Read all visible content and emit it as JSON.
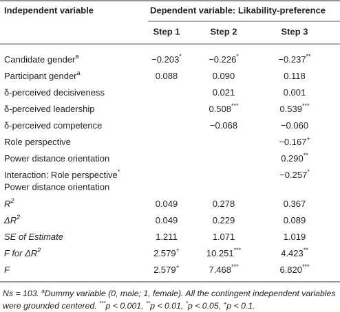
{
  "header": {
    "col0": "Independent variable",
    "group": "Dependent variable: Likability-preference",
    "steps": [
      "Step 1",
      "Step 2",
      "Step 3"
    ]
  },
  "rows": [
    {
      "label": "Candidate gender",
      "label_sup": "a",
      "cells": [
        {
          "text": "−0.203",
          "sup": "*"
        },
        {
          "text": "−0.226",
          "sup": "*"
        },
        {
          "text": "−0.237",
          "sup": "**"
        }
      ]
    },
    {
      "label": "Participant gender",
      "label_sup": "a",
      "cells": [
        {
          "text": "0.088"
        },
        {
          "text": "0.090"
        },
        {
          "text": "0.118"
        }
      ]
    },
    {
      "label": "δ-perceived decisiveness",
      "cells": [
        null,
        {
          "text": "0.021"
        },
        {
          "text": "0.001"
        }
      ]
    },
    {
      "label": "δ-perceived leadership",
      "cells": [
        null,
        {
          "text": "0.508",
          "sup": "***"
        },
        {
          "text": "0.539",
          "sup": "***"
        }
      ]
    },
    {
      "label": "δ-perceived competence",
      "cells": [
        null,
        {
          "text": "−0.068"
        },
        {
          "text": "−0.060"
        }
      ]
    },
    {
      "label": "Role perspective",
      "cells": [
        null,
        null,
        {
          "text": "−0.167",
          "sup": "+"
        }
      ]
    },
    {
      "label": "Power distance orientation",
      "cells": [
        null,
        null,
        {
          "text": "0.290",
          "sup": "**"
        }
      ]
    },
    {
      "label": "Interaction: Role perspective",
      "label_sup": "*",
      "label2": "Power distance orientation",
      "cells": [
        null,
        null,
        {
          "text": "−0.257",
          "sup": "*"
        }
      ]
    },
    {
      "label": "R",
      "label_sup": "2",
      "italic": true,
      "cells": [
        {
          "text": "0.049"
        },
        {
          "text": "0.278"
        },
        {
          "text": "0.367"
        }
      ]
    },
    {
      "label": "ΔR",
      "label_sup": "2",
      "italic": true,
      "cells": [
        {
          "text": "0.049"
        },
        {
          "text": "0.229"
        },
        {
          "text": "0.089"
        }
      ]
    },
    {
      "label": "SE of Estimate",
      "italic": true,
      "cells": [
        {
          "text": "1.211"
        },
        {
          "text": "1.071"
        },
        {
          "text": "1.019"
        }
      ]
    },
    {
      "label": "F for ΔR",
      "label_sup": "2",
      "italic": true,
      "cells": [
        {
          "text": "2.579",
          "sup": "+"
        },
        {
          "text": "10.251",
          "sup": "***"
        },
        {
          "text": "4.423",
          "sup": "**"
        }
      ]
    },
    {
      "label": "F",
      "italic": true,
      "cells": [
        {
          "text": "2.579",
          "sup": "+"
        },
        {
          "text": "7.468",
          "sup": "***"
        },
        {
          "text": "6.820",
          "sup": "***"
        }
      ]
    }
  ],
  "footnote": [
    {
      "text": "Ns = 103. "
    },
    {
      "sup": "a"
    },
    {
      "text": "Dummy variable (0, male; 1, female). All the contingent independent variables were grounded centered. "
    },
    {
      "sup": "***"
    },
    {
      "text": "p < 0.001, "
    },
    {
      "sup": "**"
    },
    {
      "text": "p < 0.01, "
    },
    {
      "sup": "*"
    },
    {
      "text": "p < 0.05, "
    },
    {
      "sup": "+"
    },
    {
      "text": "p < 0.1."
    }
  ]
}
